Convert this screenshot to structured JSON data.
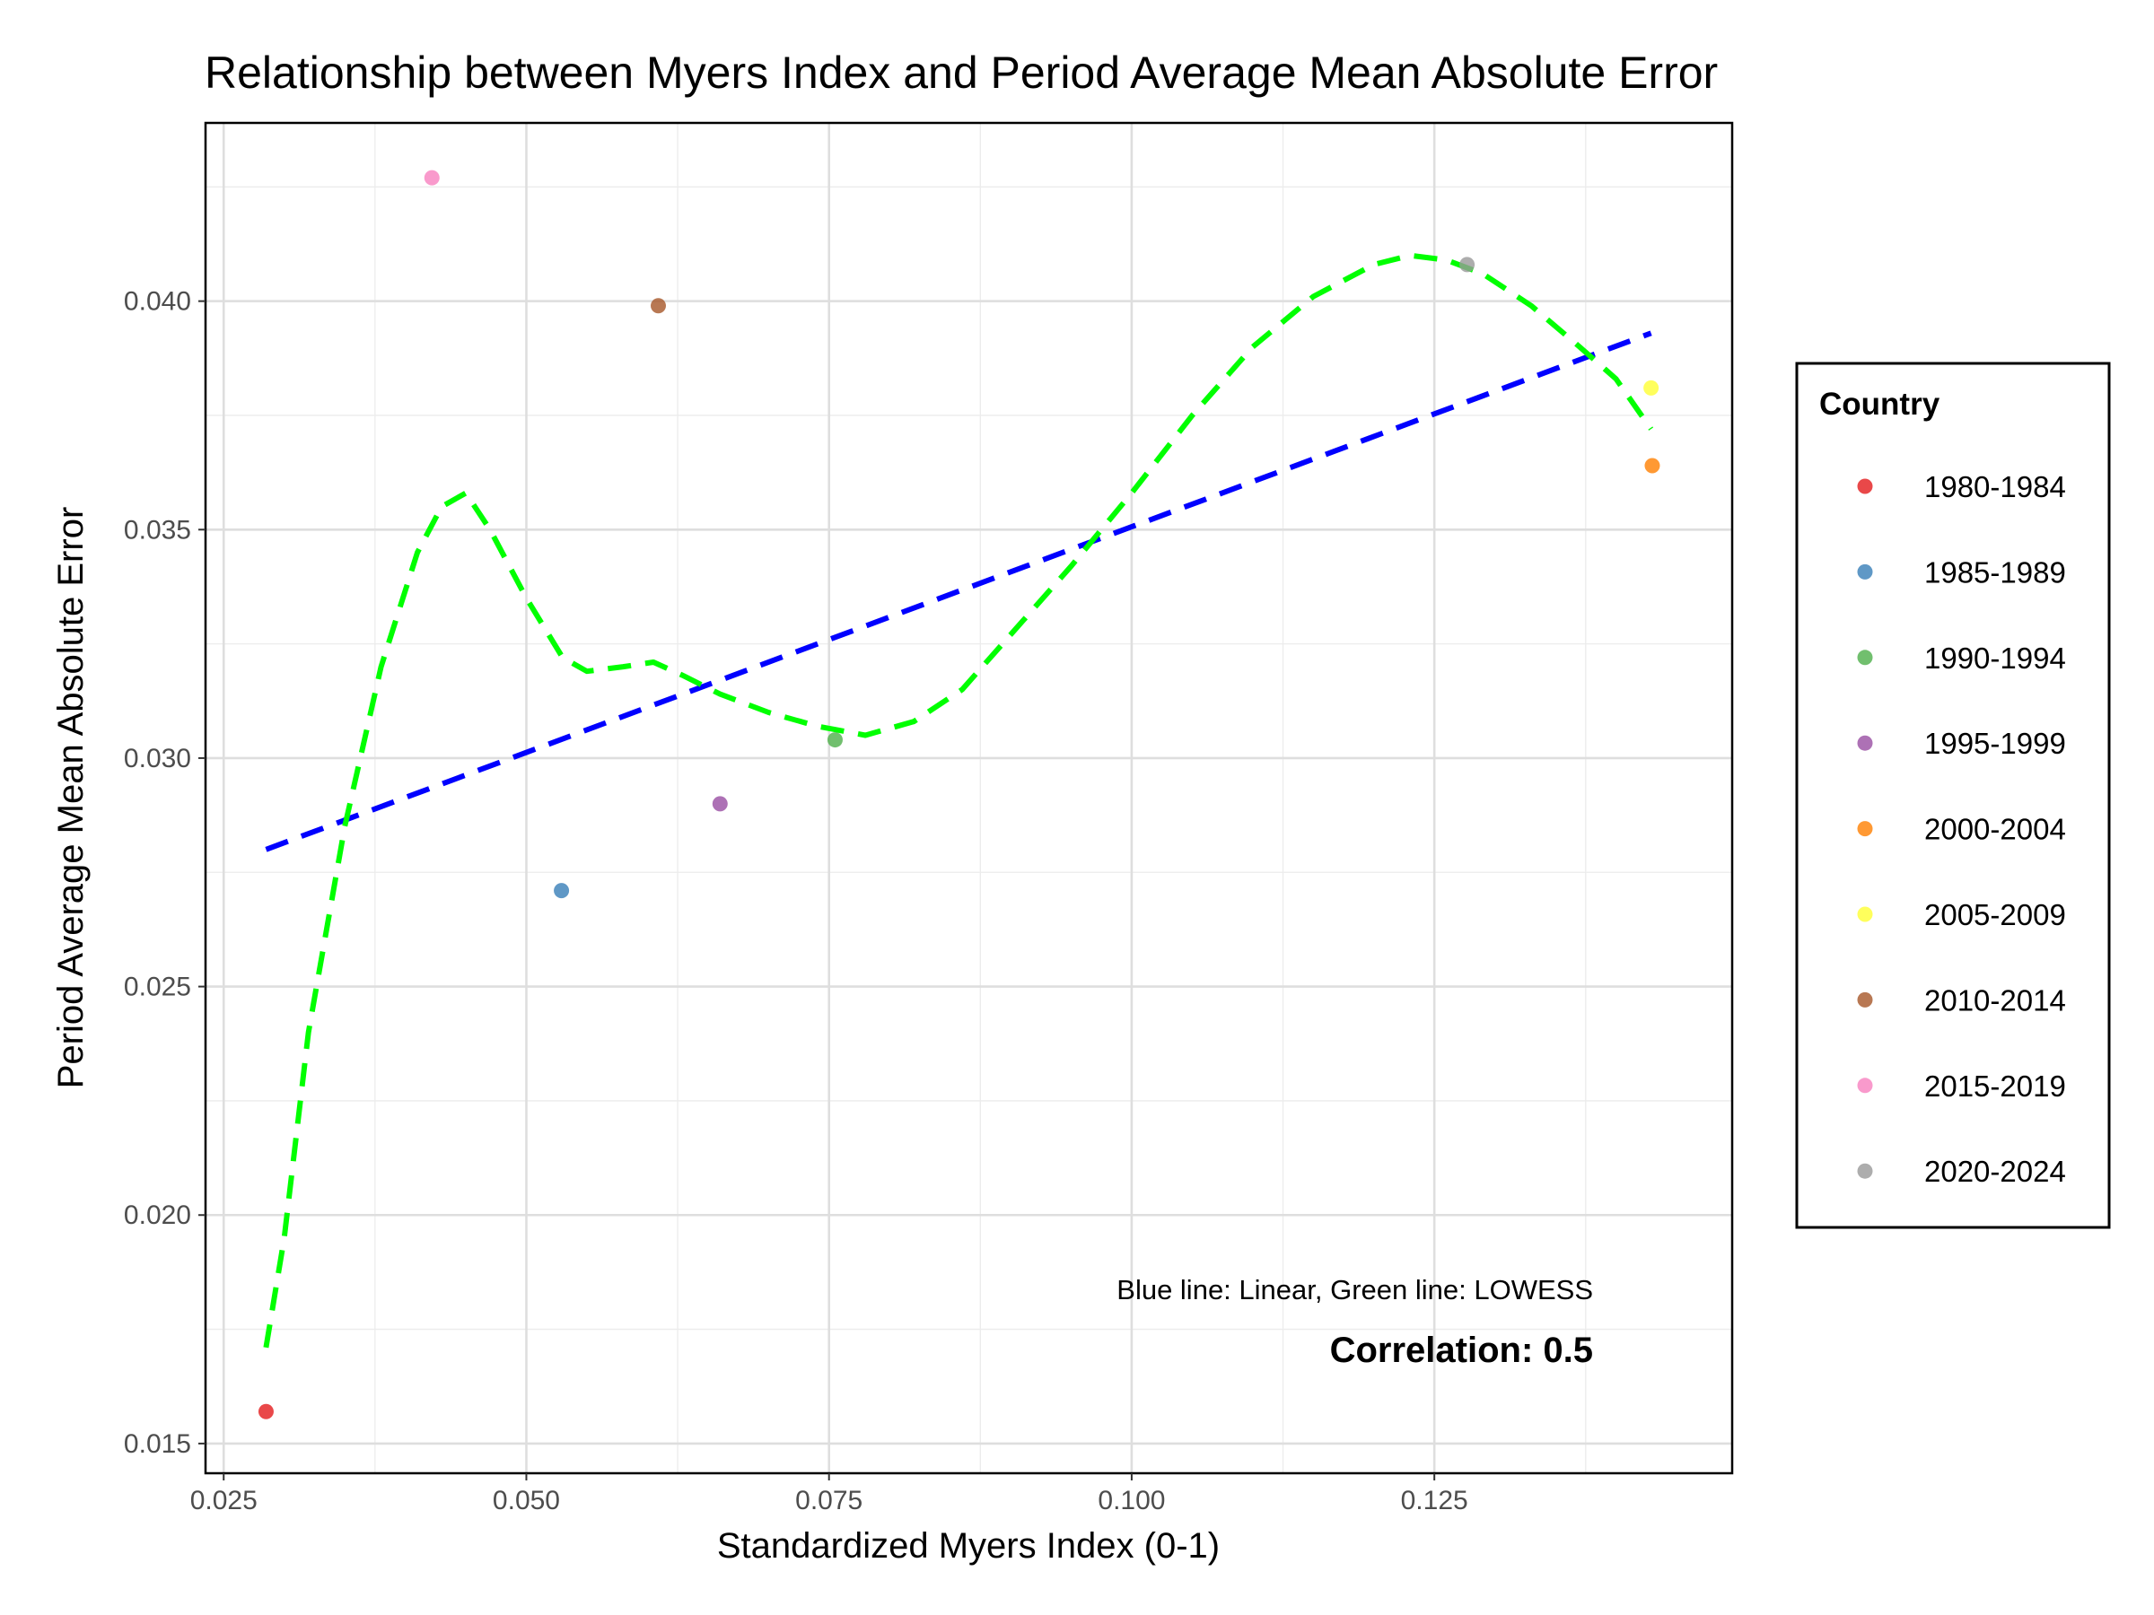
{
  "chart_data": {
    "type": "scatter",
    "title": "Relationship between Myers Index and Period Average Mean Absolute Error",
    "xlabel": "Standardized Myers Index (0-1)",
    "ylabel": "Period Average Mean Absolute Error",
    "xlim": [
      0.0235,
      0.1496
    ],
    "ylim": [
      0.01435,
      0.0439
    ],
    "x_ticks": [
      0.025,
      0.05,
      0.075,
      0.1,
      0.125
    ],
    "x_tick_labels": [
      "0.025",
      "0.050",
      "0.075",
      "0.100",
      "0.125"
    ],
    "y_ticks": [
      0.015,
      0.02,
      0.025,
      0.03,
      0.035,
      0.04
    ],
    "y_tick_labels": [
      "0.015",
      "0.020",
      "0.025",
      "0.030",
      "0.035",
      "0.040"
    ],
    "grid": true,
    "legend_title": "Country",
    "legend_position": "right",
    "series": [
      {
        "name": "1980-1984",
        "color": "#e41a1c",
        "x": 0.0285,
        "y": 0.0157
      },
      {
        "name": "1985-1989",
        "color": "#377eb8",
        "x": 0.0529,
        "y": 0.0271
      },
      {
        "name": "1990-1994",
        "color": "#4daf4a",
        "x": 0.0755,
        "y": 0.0304
      },
      {
        "name": "1995-1999",
        "color": "#984ea3",
        "x": 0.066,
        "y": 0.029
      },
      {
        "name": "2000-2004",
        "color": "#ff7f00",
        "x": 0.143,
        "y": 0.0364
      },
      {
        "name": "2005-2009",
        "color": "#ffff33",
        "x": 0.1429,
        "y": 0.0381
      },
      {
        "name": "2010-2014",
        "color": "#a65628",
        "x": 0.0609,
        "y": 0.0399
      },
      {
        "name": "2015-2019",
        "color": "#f781bf",
        "x": 0.0422,
        "y": 0.0427
      },
      {
        "name": "2020-2024",
        "color": "#999999",
        "x": 0.1277,
        "y": 0.0408
      }
    ],
    "linear_fit": {
      "color": "#0000ff",
      "points": [
        [
          0.0285,
          0.028
        ],
        [
          0.1429,
          0.0393
        ]
      ]
    },
    "lowess_fit": {
      "color": "#00ff00",
      "points": [
        [
          0.0285,
          0.0171
        ],
        [
          0.03,
          0.0195
        ],
        [
          0.032,
          0.024
        ],
        [
          0.035,
          0.0285
        ],
        [
          0.038,
          0.032
        ],
        [
          0.041,
          0.0345
        ],
        [
          0.043,
          0.0355
        ],
        [
          0.045,
          0.0358
        ],
        [
          0.047,
          0.035
        ],
        [
          0.05,
          0.0335
        ],
        [
          0.053,
          0.0322
        ],
        [
          0.055,
          0.0319
        ],
        [
          0.058,
          0.032
        ],
        [
          0.0605,
          0.0321
        ],
        [
          0.063,
          0.0318
        ],
        [
          0.066,
          0.0314
        ],
        [
          0.07,
          0.031
        ],
        [
          0.074,
          0.0307
        ],
        [
          0.078,
          0.0305
        ],
        [
          0.082,
          0.0308
        ],
        [
          0.086,
          0.0315
        ],
        [
          0.09,
          0.0327
        ],
        [
          0.095,
          0.0342
        ],
        [
          0.1,
          0.0358
        ],
        [
          0.105,
          0.0375
        ],
        [
          0.11,
          0.039
        ],
        [
          0.115,
          0.0401
        ],
        [
          0.12,
          0.0408
        ],
        [
          0.123,
          0.041
        ],
        [
          0.126,
          0.0409
        ],
        [
          0.129,
          0.0406
        ],
        [
          0.133,
          0.0399
        ],
        [
          0.137,
          0.039
        ],
        [
          0.14,
          0.0383
        ],
        [
          0.1429,
          0.0372
        ]
      ]
    },
    "annotations": {
      "fit_note": "Blue line: Linear, Green line: LOWESS",
      "correlation": "Correlation: 0.5"
    }
  }
}
